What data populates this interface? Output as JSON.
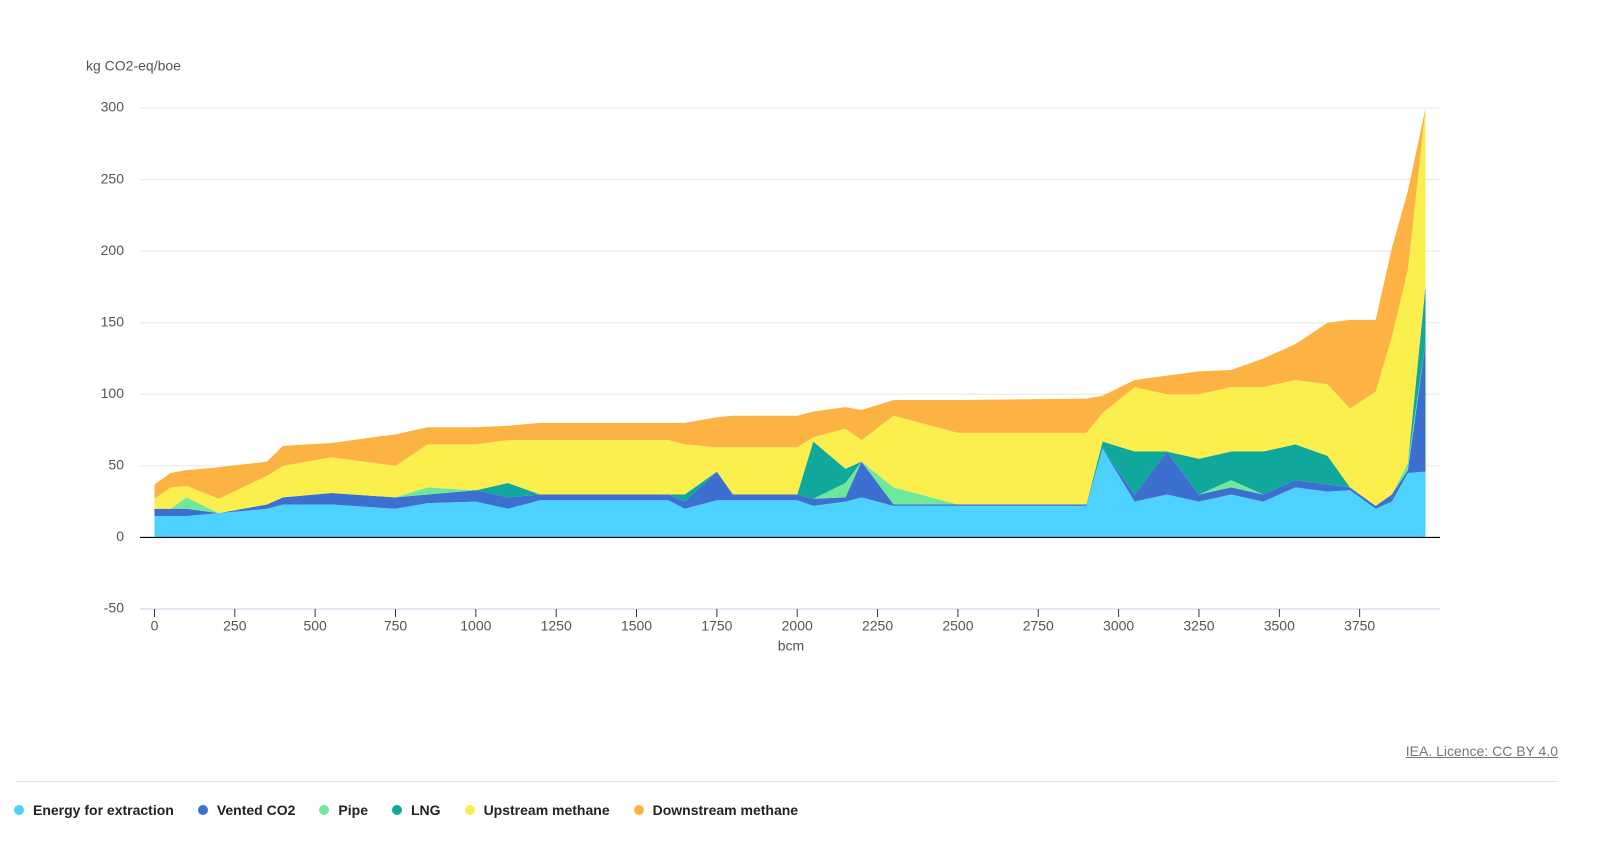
{
  "chart_data": {
    "type": "area",
    "stacked": true,
    "y_label": "kg CO2-eq/boe",
    "x_label": "bcm",
    "source": "IEA. Licence: CC BY 4.0",
    "xlim": [
      -45,
      4000
    ],
    "xticks": [
      0,
      250,
      500,
      750,
      1000,
      1250,
      1500,
      1750,
      2000,
      2250,
      2500,
      2750,
      3000,
      3250,
      3500,
      3750
    ],
    "ylim": [
      -50,
      300
    ],
    "yticks": [
      -50,
      0,
      50,
      100,
      150,
      200,
      250,
      300
    ],
    "grid": true,
    "x": [
      0,
      50,
      100,
      200,
      350,
      400,
      550,
      750,
      850,
      1000,
      1100,
      1200,
      1600,
      1650,
      1750,
      1800,
      2000,
      2050,
      2150,
      2200,
      2300,
      2500,
      2900,
      2950,
      3050,
      3150,
      3250,
      3350,
      3450,
      3550,
      3650,
      3720,
      3800,
      3850,
      3900,
      3955
    ],
    "series": [
      {
        "name": "Energy for extraction",
        "color": "#4dd2ff",
        "values": [
          15,
          15,
          15,
          17,
          20,
          23,
          23,
          20,
          24,
          25,
          20,
          26,
          26,
          20,
          26,
          26,
          26,
          22,
          25,
          28,
          22,
          22,
          22,
          62,
          25,
          30,
          25,
          30,
          25,
          35,
          32,
          33,
          20,
          25,
          45,
          46
        ]
      },
      {
        "name": "Vented CO2",
        "color": "#3d6fd1",
        "values": [
          5,
          5,
          5,
          0,
          3,
          5,
          8,
          8,
          6,
          8,
          8,
          4,
          4,
          5,
          20,
          4,
          4,
          5,
          3,
          25,
          1,
          1,
          1,
          0,
          5,
          30,
          5,
          5,
          5,
          5,
          5,
          2,
          2,
          5,
          2,
          90
        ]
      },
      {
        "name": "Pipe",
        "color": "#6ee89a",
        "values": [
          0,
          0,
          8,
          0,
          0,
          0,
          0,
          0,
          5,
          0,
          0,
          0,
          0,
          0,
          0,
          0,
          0,
          0,
          10,
          0,
          12,
          0,
          0,
          0,
          0,
          0,
          0,
          5,
          0,
          0,
          0,
          0,
          0,
          0,
          5,
          0
        ]
      },
      {
        "name": "LNG",
        "color": "#10a89a",
        "values": [
          0,
          0,
          0,
          0,
          0,
          0,
          0,
          0,
          0,
          0,
          10,
          0,
          0,
          5,
          0,
          0,
          0,
          40,
          10,
          0,
          0,
          0,
          0,
          5,
          30,
          0,
          25,
          20,
          30,
          25,
          20,
          0,
          0,
          0,
          0,
          40
        ]
      },
      {
        "name": "Upstream methane",
        "color": "#fbef4e",
        "values": [
          7,
          15,
          8,
          10,
          20,
          22,
          25,
          22,
          30,
          32,
          30,
          38,
          38,
          35,
          17,
          33,
          33,
          3,
          28,
          15,
          50,
          50,
          50,
          20,
          45,
          40,
          45,
          45,
          45,
          45,
          50,
          55,
          80,
          110,
          135,
          124
        ]
      },
      {
        "name": "Downstream methane",
        "color": "#fdb244",
        "values": [
          10,
          10,
          11,
          22,
          10,
          14,
          10,
          22,
          12,
          12,
          10,
          12,
          12,
          15,
          21,
          22,
          22,
          18,
          15,
          21,
          11,
          23,
          24,
          12,
          5,
          13,
          16,
          12,
          20,
          25,
          43,
          62,
          50,
          62,
          55,
          0
        ]
      }
    ]
  }
}
